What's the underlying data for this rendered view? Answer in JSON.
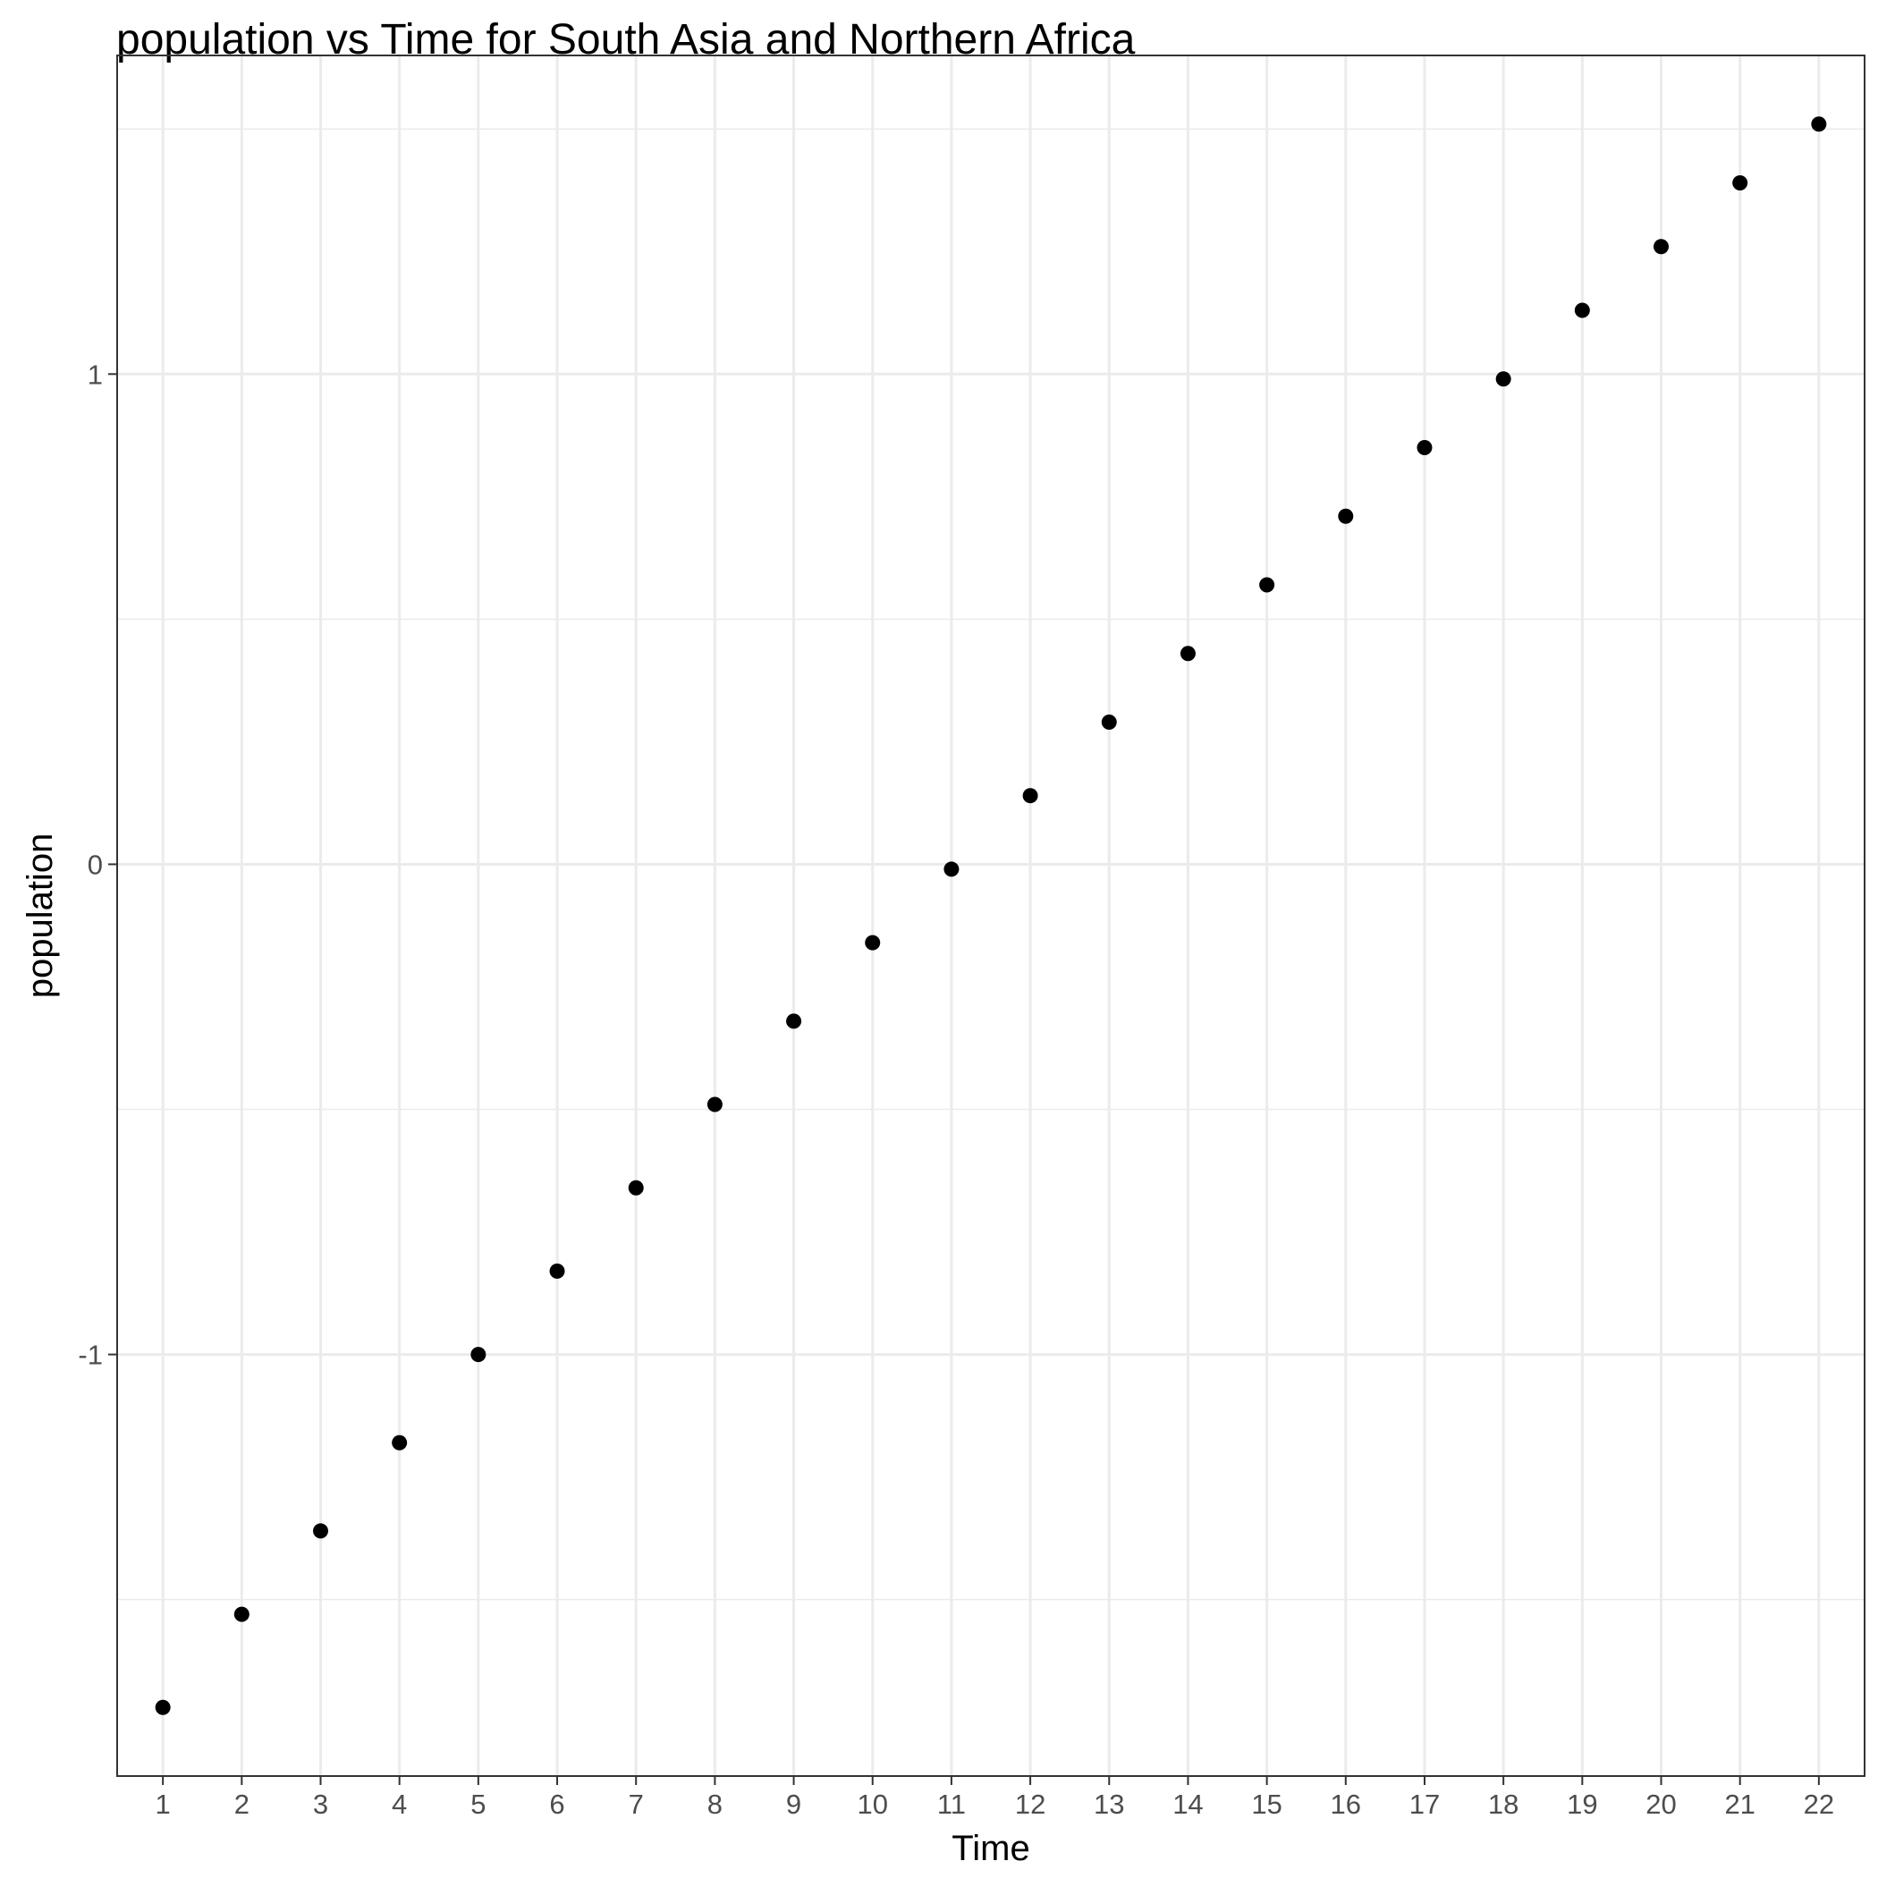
{
  "chart_data": {
    "type": "scatter",
    "title": "population  vs Time for South Asia and Northern Africa",
    "xlabel": "Time",
    "ylabel": "population",
    "x": [
      1,
      2,
      3,
      4,
      5,
      6,
      7,
      8,
      9,
      10,
      11,
      12,
      13,
      14,
      15,
      16,
      17,
      18,
      19,
      20,
      21,
      22
    ],
    "y": [
      -1.72,
      -1.53,
      -1.36,
      -1.18,
      -1.0,
      -0.83,
      -0.66,
      -0.49,
      -0.32,
      -0.16,
      -0.01,
      0.14,
      0.29,
      0.43,
      0.57,
      0.71,
      0.85,
      0.99,
      1.13,
      1.26,
      1.39,
      1.51
    ],
    "x_ticks": [
      "1",
      "2",
      "3",
      "4",
      "5",
      "6",
      "7",
      "8",
      "9",
      "10",
      "11",
      "12",
      "13",
      "14",
      "15",
      "16",
      "17",
      "18",
      "19",
      "20",
      "21",
      "22"
    ],
    "y_ticks": [
      "-1",
      "0",
      "1"
    ],
    "xlim": [
      0.42,
      22.58
    ],
    "ylim": [
      -1.86,
      1.65
    ],
    "grid": true,
    "legend": "none",
    "point_color": "#000000",
    "background": "#ffffff",
    "grid_color": "#ebebeb"
  }
}
